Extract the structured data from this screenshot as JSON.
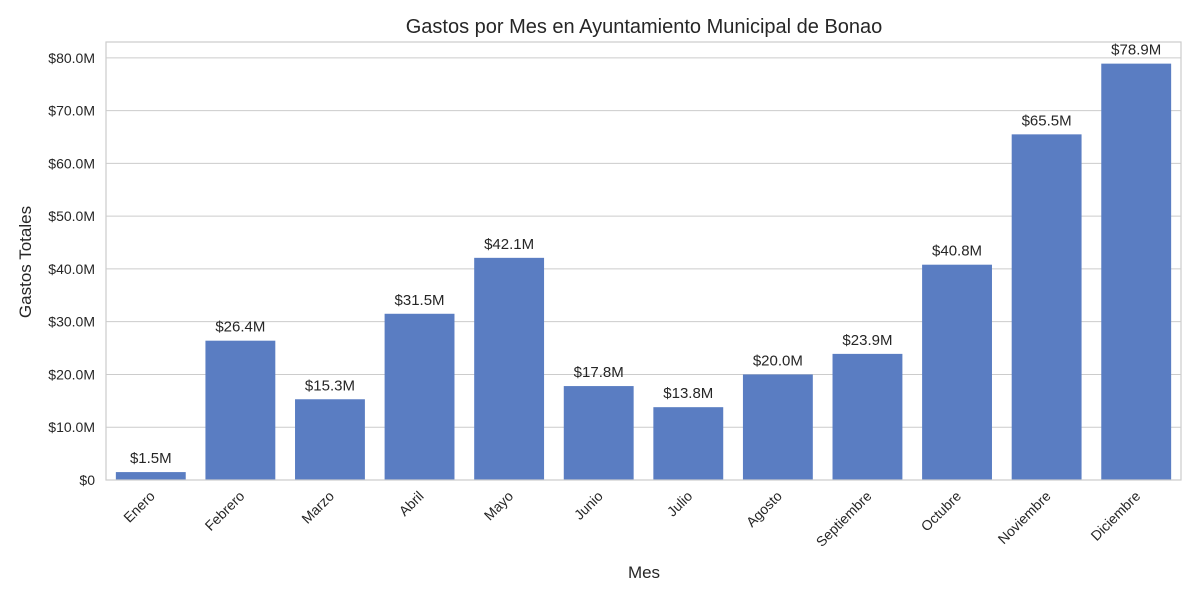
{
  "chart_data": {
    "type": "bar",
    "title": "Gastos por Mes en Ayuntamiento Municipal de Bonao",
    "xlabel": "Mes",
    "ylabel": "Gastos Totales",
    "categories": [
      "Enero",
      "Febrero",
      "Marzo",
      "Abril",
      "Mayo",
      "Junio",
      "Julio",
      "Agosto",
      "Septiembre",
      "Octubre",
      "Noviembre",
      "Diciembre"
    ],
    "values": [
      1.5,
      26.4,
      15.3,
      31.5,
      42.1,
      17.8,
      13.8,
      20.0,
      23.9,
      40.8,
      65.5,
      78.9
    ],
    "data_labels": [
      "$1.5M",
      "$26.4M",
      "$15.3M",
      "$31.5M",
      "$42.1M",
      "$17.8M",
      "$13.8M",
      "$20.0M",
      "$23.9M",
      "$40.8M",
      "$65.5M",
      "$78.9M"
    ],
    "ylim": [
      0,
      83
    ],
    "yticks": [
      0,
      10,
      20,
      30,
      40,
      50,
      60,
      70,
      80
    ],
    "ytick_labels": [
      "$0",
      "$10.0M",
      "$20.0M",
      "$30.0M",
      "$40.0M",
      "$50.0M",
      "$60.0M",
      "$70.0M",
      "$80.0M"
    ],
    "value_unit": "millions",
    "grid": true,
    "bar_color": "#5a7dc2"
  }
}
